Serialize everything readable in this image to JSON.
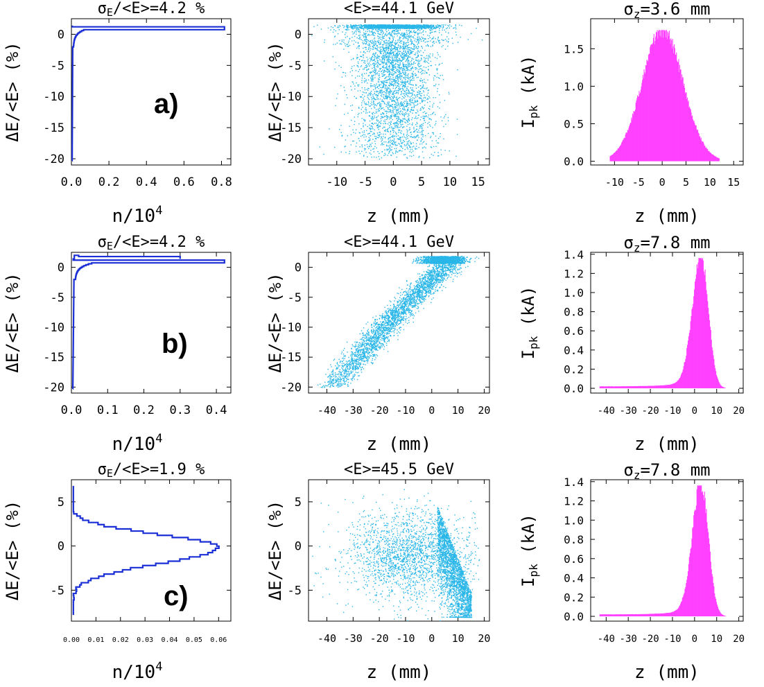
{
  "rows": [
    {
      "label": "a)",
      "spectrum": {
        "type": "line",
        "title_parts": [
          "σ",
          "E",
          "/<E>=4.2 %"
        ],
        "xlabel": "n/10",
        "xlabel_sup": "4",
        "ylabel": "ΔE/<E> (%)",
        "xlim": [
          0,
          0.85
        ],
        "ylim": [
          -21,
          2.5
        ],
        "xticks": [
          0,
          0.2,
          0.4,
          0.6,
          0.8
        ],
        "xtick_labels": [
          "0.0",
          "0.2",
          "0.4",
          "0.6",
          "0.8"
        ],
        "yticks": [
          0,
          -5,
          -10,
          -15,
          -20
        ],
        "ytick_labels": [
          "0",
          "-5",
          "-10",
          "-15",
          "-20"
        ],
        "color": "#1a2fd6"
      },
      "phase": {
        "type": "scatter",
        "title": "<E>=44.1  GeV",
        "xlabel": "z (mm)",
        "ylabel": "ΔE/<E> (%)",
        "xlim": [
          -15,
          17
        ],
        "ylim": [
          -21,
          2.5
        ],
        "xticks": [
          -10,
          -5,
          0,
          5,
          10,
          15
        ],
        "xtick_labels": [
          "-10",
          "-5",
          "0",
          "5",
          "10",
          "15"
        ],
        "yticks": [
          0,
          -5,
          -10,
          -15,
          -20
        ],
        "ytick_labels": [
          "0",
          "-5",
          "-10",
          "-15",
          "-20"
        ],
        "shape": "gaussian",
        "color": "#29b6e8"
      },
      "current": {
        "type": "bar",
        "title_parts": [
          "σ",
          "z",
          "=3.6  mm"
        ],
        "xlabel": "z (mm)",
        "ylabel": "I",
        "ylabel_sub": "pk",
        "ylabel_unit": "(kA)",
        "xlim": [
          -15,
          17
        ],
        "ylim": [
          -0.05,
          1.9
        ],
        "xticks": [
          -10,
          -5,
          0,
          5,
          10,
          15
        ],
        "xtick_labels": [
          "-10",
          "-5",
          "0",
          "5",
          "10",
          "15"
        ],
        "yticks": [
          0,
          0.5,
          1.0,
          1.5
        ],
        "ytick_labels": [
          "0.0",
          "0.5",
          "1.0",
          "1.5"
        ],
        "shape": "gaussian",
        "peak": 1.75,
        "center": 0,
        "sigma": 3.6,
        "color": "#ff40ff"
      }
    },
    {
      "label": "b)",
      "spectrum": {
        "type": "line",
        "title_parts": [
          "σ",
          "E",
          "/<E>=4.2 %"
        ],
        "xlabel": "n/10",
        "xlabel_sup": "4",
        "ylabel": "ΔE/<E> (%)",
        "xlim": [
          0,
          0.44
        ],
        "ylim": [
          -21,
          2.5
        ],
        "xticks": [
          0,
          0.1,
          0.2,
          0.3,
          0.4
        ],
        "xtick_labels": [
          "0.0",
          "0.1",
          "0.2",
          "0.3",
          "0.4"
        ],
        "yticks": [
          0,
          -5,
          -10,
          -15,
          -20
        ],
        "ytick_labels": [
          "0",
          "-5",
          "-10",
          "-15",
          "-20"
        ],
        "color": "#1a2fd6"
      },
      "phase": {
        "type": "scatter",
        "title": "<E>=44.1  GeV",
        "xlabel": "z (mm)",
        "ylabel": "ΔE/<E> (%)",
        "xlim": [
          -47,
          22
        ],
        "ylim": [
          -21,
          2.5
        ],
        "xticks": [
          -40,
          -30,
          -20,
          -10,
          0,
          10,
          20
        ],
        "xtick_labels": [
          "-40",
          "-30",
          "-20",
          "-10",
          "0",
          "10",
          "20"
        ],
        "yticks": [
          0,
          -5,
          -10,
          -15,
          -20
        ],
        "ytick_labels": [
          "0",
          "-5",
          "-10",
          "-15",
          "-20"
        ],
        "shape": "chirped",
        "color": "#29b6e8"
      },
      "current": {
        "type": "bar",
        "title_parts": [
          "σ",
          "z",
          "=7.8  mm"
        ],
        "xlabel": "z (mm)",
        "ylabel": "I",
        "ylabel_sub": "pk",
        "ylabel_unit": "(kA)",
        "xlim": [
          -47,
          22
        ],
        "ylim": [
          -0.05,
          1.42
        ],
        "xticks": [
          -40,
          -30,
          -20,
          -10,
          0,
          10,
          20
        ],
        "xtick_labels": [
          "-40",
          "-30",
          "-20",
          "-10",
          "0",
          "10",
          "20"
        ],
        "yticks": [
          0,
          0.2,
          0.4,
          0.6,
          0.8,
          1.0,
          1.2,
          1.4
        ],
        "ytick_labels": [
          "0.0",
          "0.2",
          "0.4",
          "0.6",
          "0.8",
          "1.0",
          "1.2",
          "1.4"
        ],
        "shape": "skewed",
        "peak": 1.36,
        "center": 3,
        "color": "#ff40ff"
      }
    },
    {
      "label": "c)",
      "spectrum": {
        "type": "line",
        "title_parts": [
          "σ",
          "E",
          "/<E>=1.9 %"
        ],
        "xlabel": "n/10",
        "xlabel_sup": "4",
        "ylabel": "ΔE/<E> (%)",
        "xlim": [
          0,
          0.065
        ],
        "ylim": [
          -8.5,
          7.5
        ],
        "xticks": [
          0,
          0.01,
          0.02,
          0.03,
          0.04,
          0.05,
          0.06
        ],
        "xtick_labels": [
          "0.00",
          "0.01",
          "0.02",
          "0.03",
          "0.04",
          "0.05",
          "0.06"
        ],
        "yticks": [
          5,
          0,
          -5
        ],
        "ytick_labels": [
          "5",
          "0",
          "-5"
        ],
        "color": "#1a2fd6"
      },
      "phase": {
        "type": "scatter",
        "title": "<E>=45.5  GeV",
        "xlabel": "z (mm)",
        "ylabel": "ΔE/<E> (%)",
        "xlim": [
          -47,
          22
        ],
        "ylim": [
          -8.5,
          7.5
        ],
        "xticks": [
          -40,
          -30,
          -20,
          -10,
          0,
          10,
          20
        ],
        "xtick_labels": [
          "-40",
          "-30",
          "-20",
          "-10",
          "0",
          "10",
          "20"
        ],
        "yticks": [
          5,
          0,
          -5
        ],
        "ytick_labels": [
          "5",
          "0",
          "-5"
        ],
        "shape": "wedge",
        "color": "#29b6e8"
      },
      "current": {
        "type": "bar",
        "title_parts": [
          "σ",
          "z",
          "=7.8  mm"
        ],
        "xlabel": "z (mm)",
        "ylabel": "I",
        "ylabel_sub": "pk",
        "ylabel_unit": "(kA)",
        "xlim": [
          -47,
          22
        ],
        "ylim": [
          -0.05,
          1.42
        ],
        "xticks": [
          -40,
          -30,
          -20,
          -10,
          0,
          10,
          20
        ],
        "xtick_labels": [
          "-40",
          "-30",
          "-20",
          "-10",
          "0",
          "10",
          "20"
        ],
        "yticks": [
          0,
          0.2,
          0.4,
          0.6,
          0.8,
          1.0,
          1.2,
          1.4
        ],
        "ytick_labels": [
          "0.0",
          "0.2",
          "0.4",
          "0.6",
          "0.8",
          "1.0",
          "1.2",
          "1.4"
        ],
        "shape": "skewed",
        "peak": 1.36,
        "center": 3,
        "color": "#ff40ff"
      }
    }
  ],
  "chart_data": [
    {
      "type": "line",
      "panel": "a) spectrum",
      "title": "σE/<E>=4.2 %",
      "xlabel": "n/10^4",
      "ylabel": "ΔE/<E> (%)",
      "y": [
        -20,
        -15,
        -10,
        -5,
        -1,
        0,
        1.2
      ],
      "x": [
        0.003,
        0.004,
        0.005,
        0.007,
        0.02,
        0.06,
        0.82
      ]
    },
    {
      "type": "scatter",
      "panel": "a) phase space",
      "title": "<E>=44.1 GeV",
      "xlabel": "z (mm)",
      "ylabel": "ΔE/<E> (%)",
      "xlim": [
        -15,
        17
      ],
      "ylim": [
        -21,
        2.5
      ]
    },
    {
      "type": "bar",
      "panel": "a) current",
      "title": "σz=3.6 mm",
      "xlabel": "z (mm)",
      "ylabel": "Ipk (kA)",
      "peak_kA": 1.75,
      "center_mm": 0
    },
    {
      "type": "line",
      "panel": "b) spectrum",
      "title": "σE/<E>=4.2 %",
      "xlabel": "n/10^4",
      "ylabel": "ΔE/<E> (%)",
      "y": [
        -20,
        -15,
        -10,
        -5,
        -1,
        0,
        1.2,
        2
      ],
      "x": [
        0.003,
        0.004,
        0.005,
        0.007,
        0.02,
        0.05,
        0.42,
        0.01
      ]
    },
    {
      "type": "scatter",
      "panel": "b) phase space",
      "title": "<E>=44.1 GeV",
      "xlabel": "z (mm)",
      "ylabel": "ΔE/<E> (%)",
      "xlim": [
        -47,
        22
      ],
      "ylim": [
        -21,
        2.5
      ]
    },
    {
      "type": "bar",
      "panel": "b) current",
      "title": "σz=7.8 mm",
      "xlabel": "z (mm)",
      "ylabel": "Ipk (kA)",
      "peak_kA": 1.36,
      "center_mm": 3
    },
    {
      "type": "line",
      "panel": "c) spectrum",
      "title": "σE/<E>=1.9 %",
      "xlabel": "n/10^4",
      "ylabel": "ΔE/<E> (%)",
      "y": [
        -8,
        -6,
        -4,
        -2,
        0,
        2,
        4,
        6,
        7
      ],
      "x": [
        0.001,
        0.003,
        0.009,
        0.03,
        0.06,
        0.035,
        0.01,
        0.002,
        0.001
      ]
    },
    {
      "type": "scatter",
      "panel": "c) phase space",
      "title": "<E>=45.5 GeV",
      "xlabel": "z (mm)",
      "ylabel": "ΔE/<E> (%)",
      "xlim": [
        -47,
        22
      ],
      "ylim": [
        -8.5,
        7.5
      ]
    },
    {
      "type": "bar",
      "panel": "c) current",
      "title": "σz=7.8 mm",
      "xlabel": "z (mm)",
      "ylabel": "Ipk (kA)",
      "peak_kA": 1.36,
      "center_mm": 3
    }
  ]
}
